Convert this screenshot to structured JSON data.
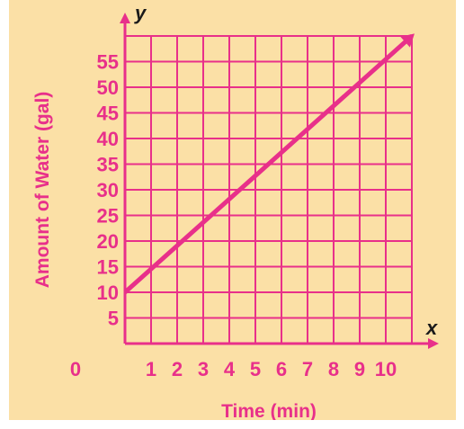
{
  "chart_data": {
    "type": "line",
    "xlabel": "Time (min)",
    "ylabel": "Amount of Water (gal)",
    "x_axis_letter": "x",
    "y_axis_letter": "y",
    "origin_label": "0",
    "x_ticks": [
      "1",
      "2",
      "3",
      "4",
      "5",
      "6",
      "7",
      "8",
      "9",
      "10"
    ],
    "y_ticks": [
      "5",
      "10",
      "15",
      "20",
      "25",
      "30",
      "35",
      "40",
      "45",
      "50",
      "55"
    ],
    "xlim": [
      0,
      11
    ],
    "ylim": [
      0,
      60
    ],
    "grid": true,
    "series": [
      {
        "x": [
          0,
          11
        ],
        "y": [
          10,
          60
        ]
      }
    ],
    "colors": {
      "grid": "#e8308a",
      "line": "#e8308a",
      "background": "#fbe0a6",
      "text": "#e8308a"
    }
  }
}
